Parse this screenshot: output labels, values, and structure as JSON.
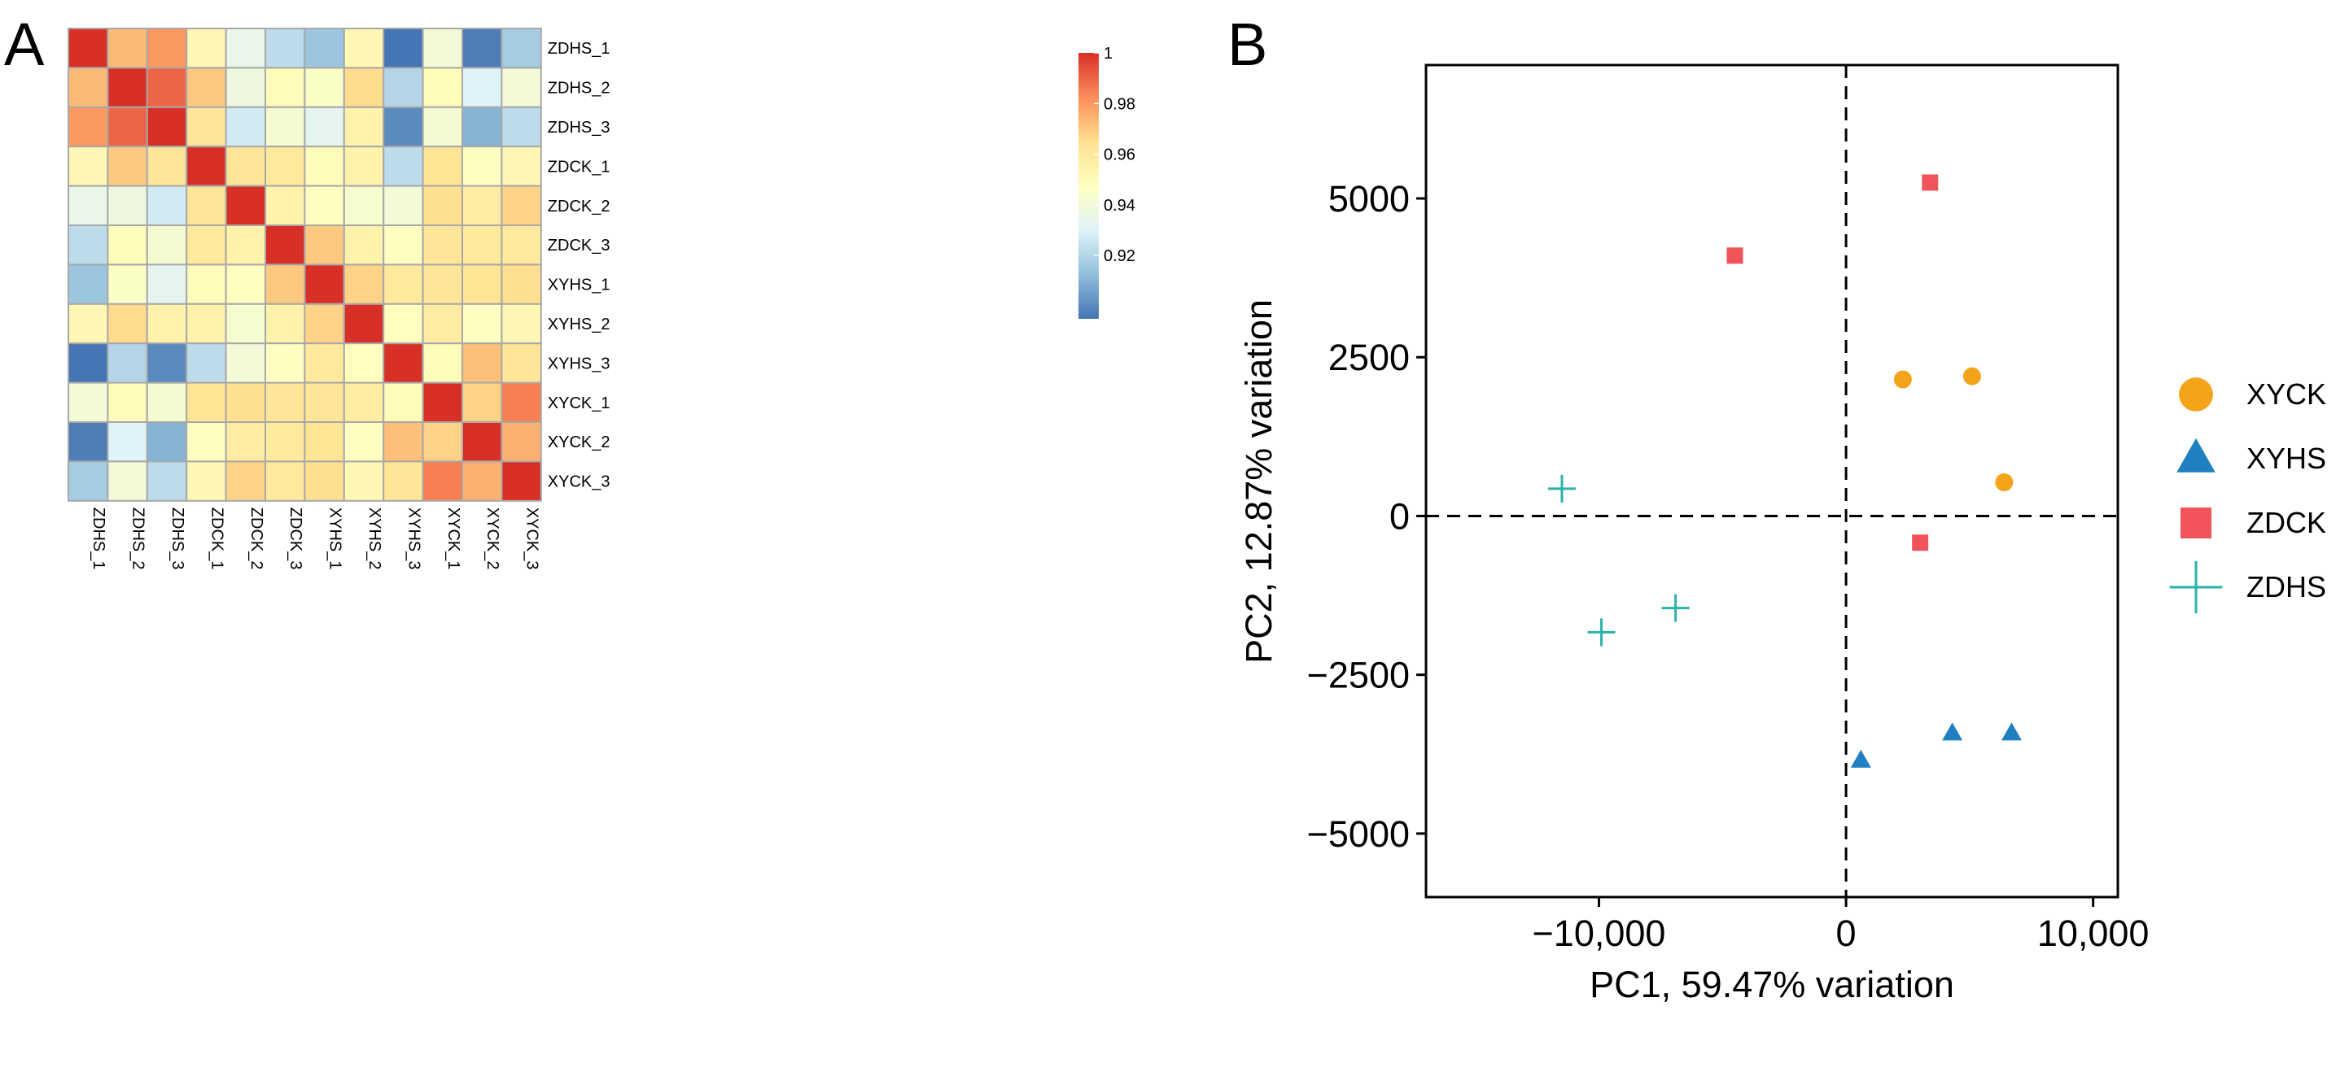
{
  "chart_data": [
    {
      "type": "heatmap",
      "panel_label": "A",
      "rows": [
        "ZDHS_1",
        "ZDHS_2",
        "ZDHS_3",
        "ZDCK_1",
        "ZDCK_2",
        "ZDCK_3",
        "XYHS_1",
        "XYHS_2",
        "XYHS_3",
        "XYCK_1",
        "XYCK_2",
        "XYCK_3"
      ],
      "columns": [
        "ZDHS_1",
        "ZDHS_2",
        "ZDHS_3",
        "ZDCK_1",
        "ZDCK_2",
        "ZDCK_3",
        "XYHS_1",
        "XYHS_2",
        "XYHS_3",
        "XYCK_1",
        "XYCK_2",
        "XYCK_3"
      ],
      "values": [
        [
          1.0,
          0.973,
          0.98,
          0.952,
          0.935,
          0.922,
          0.915,
          0.952,
          0.895,
          0.94,
          0.897,
          0.917
        ],
        [
          0.973,
          1.0,
          0.99,
          0.97,
          0.938,
          0.95,
          0.945,
          0.966,
          0.92,
          0.95,
          0.93,
          0.94
        ],
        [
          0.98,
          0.99,
          1.0,
          0.962,
          0.927,
          0.942,
          0.933,
          0.955,
          0.9,
          0.942,
          0.91,
          0.922
        ],
        [
          0.952,
          0.97,
          0.962,
          1.0,
          0.962,
          0.96,
          0.95,
          0.955,
          0.922,
          0.963,
          0.947,
          0.952
        ],
        [
          0.935,
          0.938,
          0.927,
          0.962,
          1.0,
          0.955,
          0.947,
          0.943,
          0.94,
          0.965,
          0.958,
          0.968
        ],
        [
          0.922,
          0.95,
          0.942,
          0.96,
          0.955,
          1.0,
          0.97,
          0.955,
          0.947,
          0.962,
          0.96,
          0.96
        ],
        [
          0.915,
          0.945,
          0.933,
          0.95,
          0.947,
          0.97,
          1.0,
          0.968,
          0.96,
          0.962,
          0.963,
          0.965
        ],
        [
          0.952,
          0.966,
          0.955,
          0.955,
          0.943,
          0.955,
          0.968,
          1.0,
          0.948,
          0.958,
          0.947,
          0.952
        ],
        [
          0.895,
          0.92,
          0.9,
          0.922,
          0.94,
          0.947,
          0.96,
          0.948,
          1.0,
          0.95,
          0.972,
          0.962
        ],
        [
          0.94,
          0.95,
          0.942,
          0.963,
          0.965,
          0.962,
          0.962,
          0.958,
          0.95,
          1.0,
          0.968,
          0.985
        ],
        [
          0.897,
          0.93,
          0.91,
          0.947,
          0.958,
          0.96,
          0.963,
          0.947,
          0.972,
          0.968,
          1.0,
          0.975
        ],
        [
          0.917,
          0.94,
          0.922,
          0.952,
          0.968,
          0.96,
          0.965,
          0.952,
          0.962,
          0.985,
          0.975,
          1.0
        ]
      ],
      "colorbar": {
        "ticks": [
          "1",
          "0.98",
          "0.96",
          "0.94",
          "0.92"
        ],
        "range": [
          0.895,
          1.0
        ],
        "colors": [
          "#4575b4",
          "#91bfdb",
          "#e0f3f8",
          "#ffffbf",
          "#fee090",
          "#fc8d59",
          "#d73027"
        ]
      }
    },
    {
      "type": "scatter",
      "panel_label": "B",
      "xlabel": "PC1, 59.47% variation",
      "ylabel": "PC2, 12.87% variation",
      "xlim": [
        -17000,
        11000
      ],
      "ylim": [
        -6000,
        7100
      ],
      "xticks": [
        -10000,
        0,
        10000
      ],
      "xtick_labels": [
        "−10,000",
        "0",
        "10,000"
      ],
      "yticks": [
        5000,
        2500,
        0,
        -2500,
        -5000
      ],
      "ytick_labels": [
        "5000",
        "2500",
        "0",
        "−2500",
        "−5000"
      ],
      "reference_lines": {
        "x": 0,
        "y": 0,
        "style": "dashed"
      },
      "legend_position": "right",
      "series": [
        {
          "name": "XYCK",
          "marker": "circle",
          "color": "#f5a31a",
          "points": [
            [
              2300,
              2150
            ],
            [
              5100,
              2200
            ],
            [
              6400,
              530
            ]
          ]
        },
        {
          "name": "XYHS",
          "marker": "triangle",
          "color": "#1f7fc1",
          "points": [
            [
              600,
              -3850
            ],
            [
              4300,
              -3420
            ],
            [
              6700,
              -3420
            ]
          ]
        },
        {
          "name": "ZDCK",
          "marker": "square",
          "color": "#f0545a",
          "points": [
            [
              -4500,
              4100
            ],
            [
              3400,
              5250
            ],
            [
              3000,
              -420
            ]
          ]
        },
        {
          "name": "ZDHS",
          "marker": "plus",
          "color": "#2bb3a8",
          "points": [
            [
              -11500,
              430
            ],
            [
              -6900,
              -1450
            ],
            [
              -9900,
              -1830
            ]
          ]
        }
      ]
    }
  ]
}
